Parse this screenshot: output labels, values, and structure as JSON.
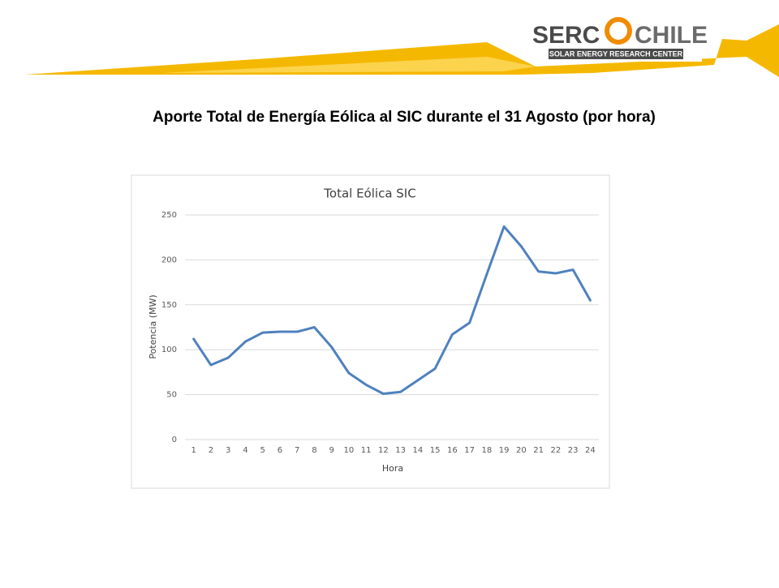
{
  "header": {
    "logo_left": "SERC",
    "logo_right": "CHILE",
    "tagline": "SOLAR ENERGY RESEARCH CENTER"
  },
  "slide_title": "Aporte Total de Energía Eólica al SIC durante el 31 Agosto (por hora)",
  "chart_data": {
    "type": "line",
    "title": "Total Eólica SIC",
    "x_label": "Hora",
    "y_label": "Potencia (MW)",
    "categories": [
      "1",
      "2",
      "3",
      "4",
      "5",
      "6",
      "7",
      "8",
      "9",
      "10",
      "11",
      "12",
      "13",
      "14",
      "15",
      "16",
      "17",
      "18",
      "19",
      "20",
      "21",
      "22",
      "23",
      "24"
    ],
    "series": [
      {
        "name": "Total Eólica SIC",
        "color": "#4f81bd",
        "values": [
          112,
          83,
          91,
          109,
          119,
          120,
          120,
          125,
          103,
          74,
          61,
          51,
          53,
          66,
          79,
          117,
          130,
          184,
          237,
          215,
          187,
          185,
          189,
          155
        ]
      }
    ],
    "ylim": [
      0,
      250
    ],
    "yticks": [
      0,
      50,
      100,
      150,
      200,
      250
    ],
    "grid": true
  }
}
